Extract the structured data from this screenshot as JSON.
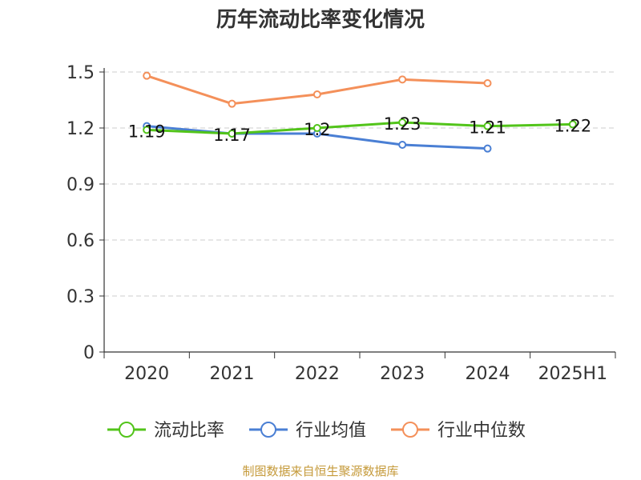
{
  "title": "历年流动比率变化情况",
  "footer": "制图数据来自恒生聚源数据库",
  "chart_data": {
    "type": "line",
    "title": "历年流动比率变化情况",
    "categories": [
      "2020",
      "2021",
      "2022",
      "2023",
      "2024",
      "2025H1"
    ],
    "ylim": [
      0,
      1.5
    ],
    "yticks": [
      "0",
      "0.3",
      "0.6",
      "0.9",
      "1.2",
      "1.5"
    ],
    "grid": true,
    "legend_position": "bottom",
    "series": [
      {
        "name": "流动比率",
        "color": "#52c41a",
        "values": [
          1.19,
          1.17,
          1.2,
          1.23,
          1.21,
          1.22
        ],
        "labels": [
          "1.19",
          "1.17",
          "1.2",
          "1.23",
          "1.21",
          "1.22"
        ]
      },
      {
        "name": "行业均值",
        "color": "#4a7fd4",
        "values": [
          1.21,
          1.17,
          1.17,
          1.11,
          1.09,
          null
        ]
      },
      {
        "name": "行业中位数",
        "color": "#f4905a",
        "values": [
          1.48,
          1.33,
          1.38,
          1.46,
          1.44,
          null
        ]
      }
    ]
  }
}
